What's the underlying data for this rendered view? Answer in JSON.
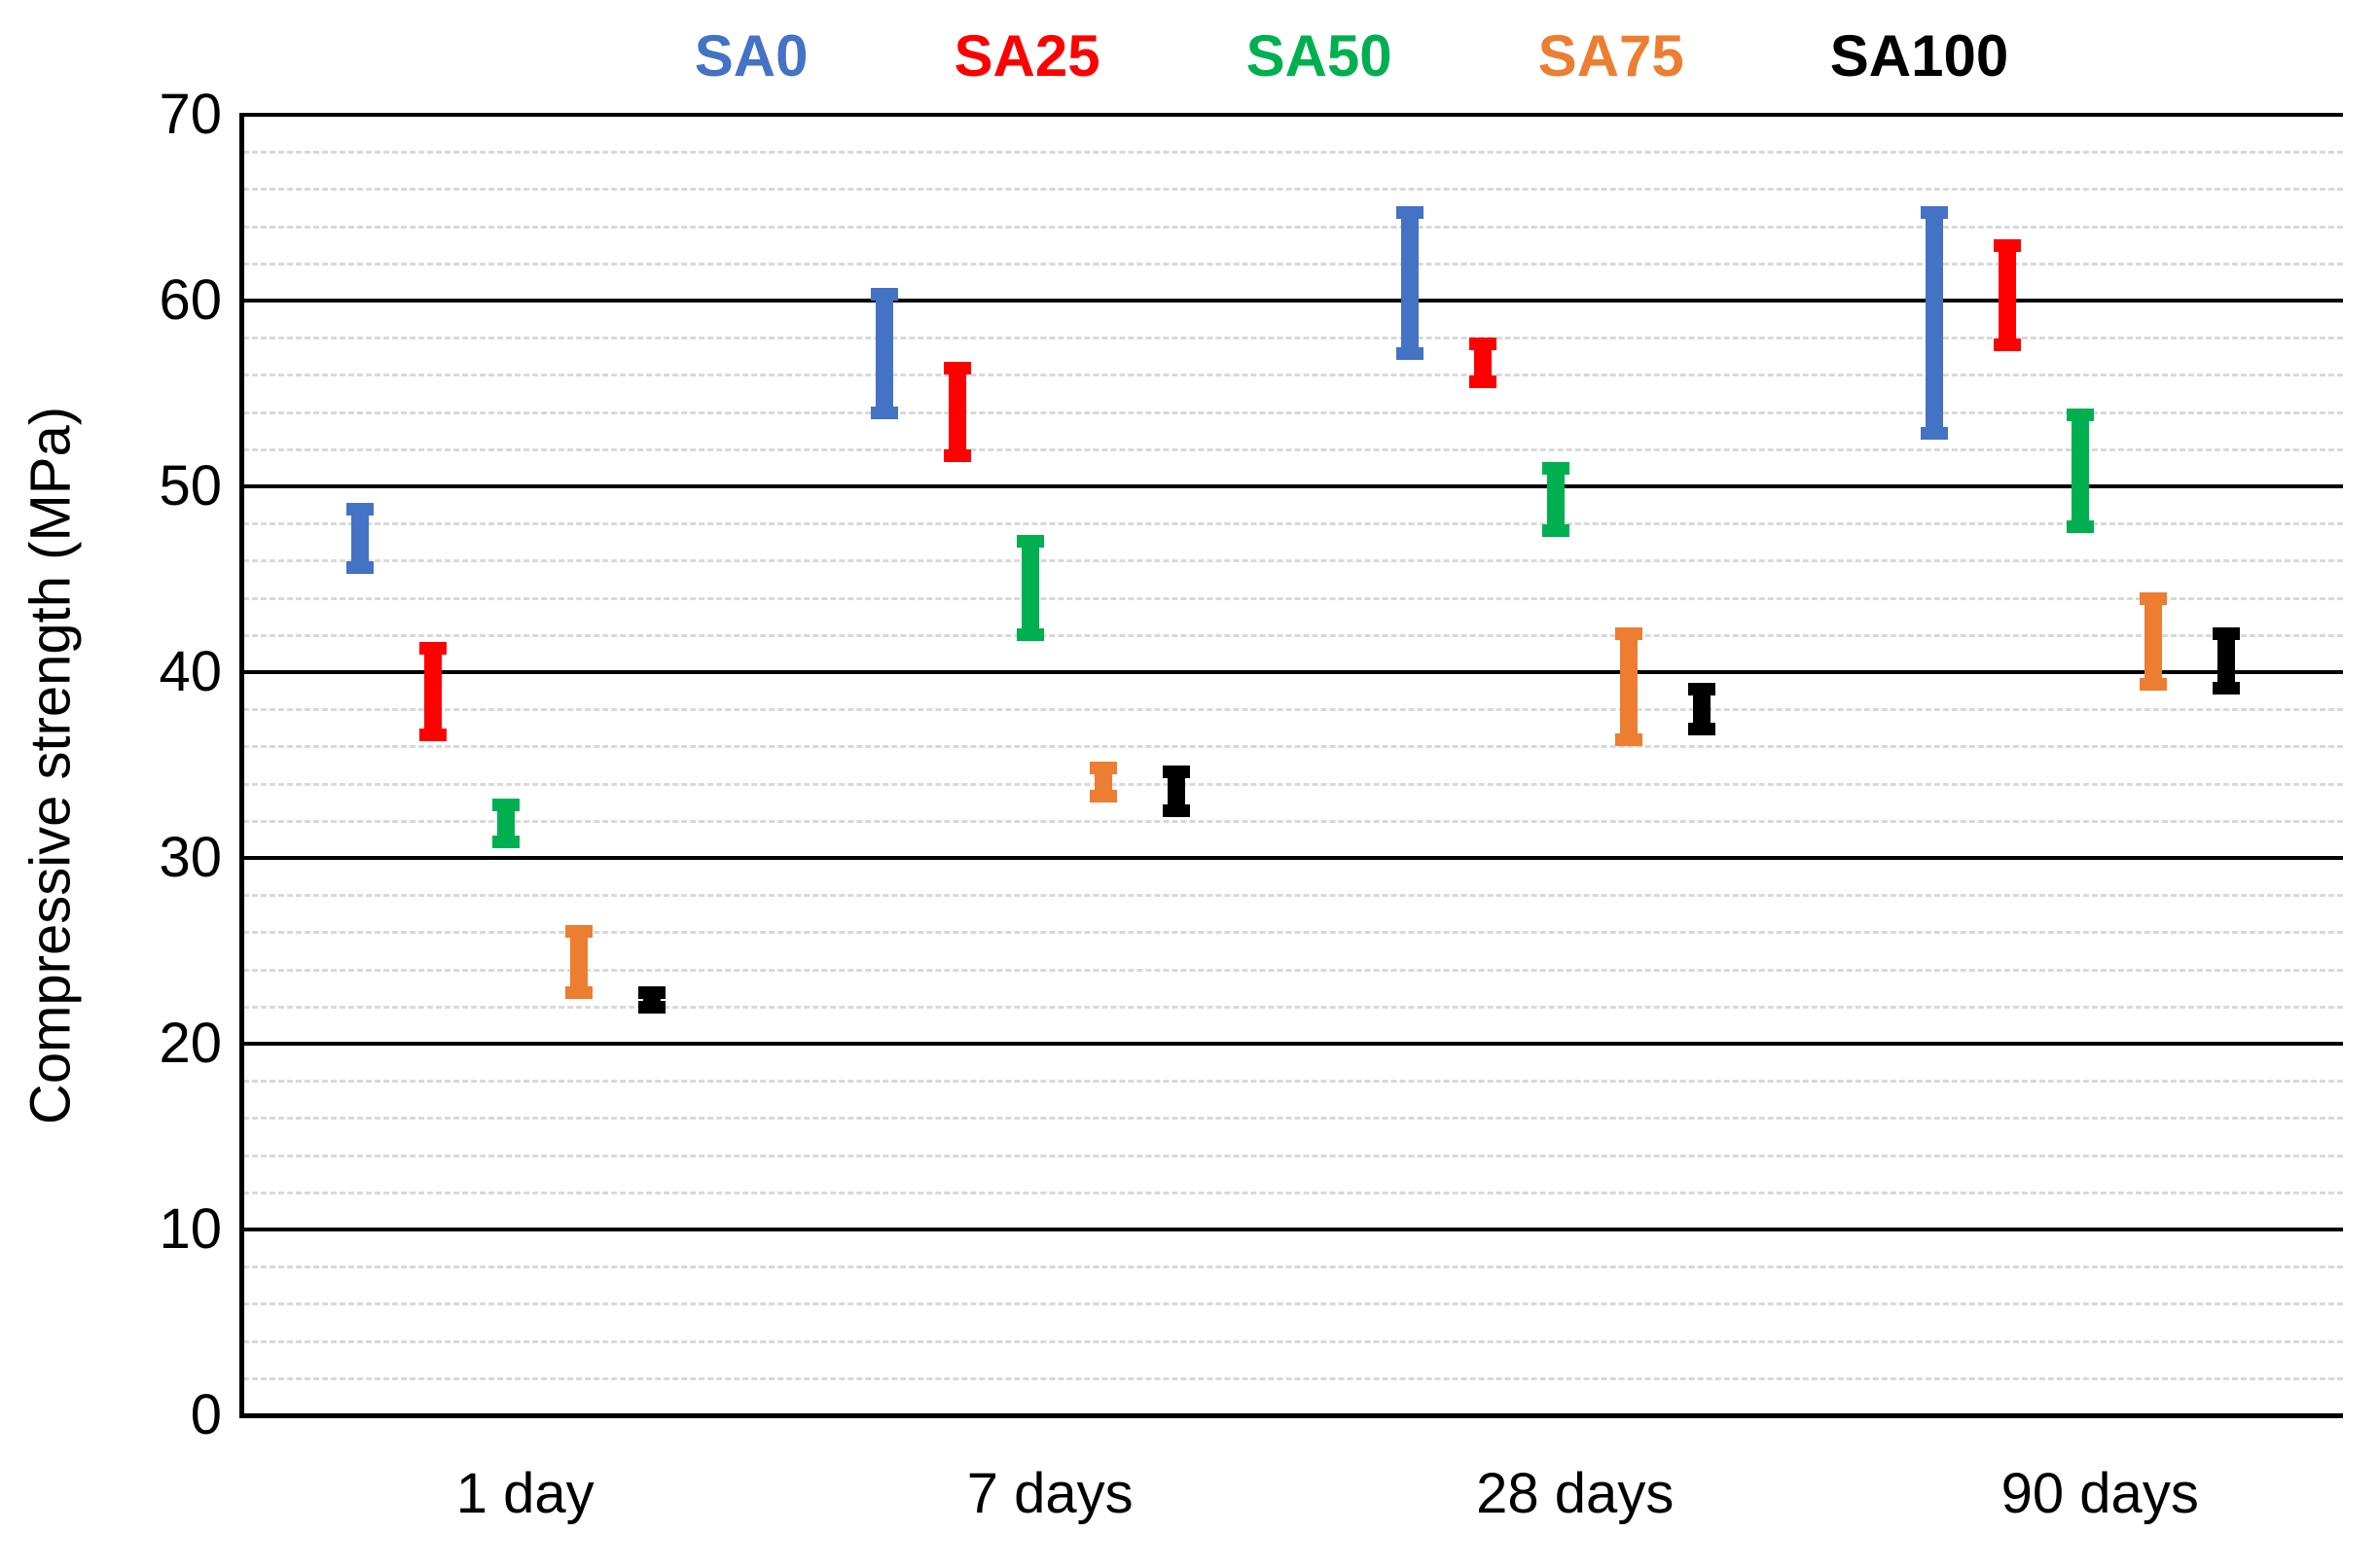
{
  "page": {
    "background": "#FFFFFF"
  },
  "chart_data": {
    "type": "bar",
    "subtype": "floating-range-bars",
    "title": "",
    "ylabel": "Compressive strength (MPa)",
    "xlabel": "",
    "ylim": [
      0,
      70
    ],
    "ytick_step": 10,
    "minor_gridline_step": 2,
    "yticks": [
      0,
      10,
      20,
      30,
      40,
      50,
      60,
      70
    ],
    "categories": [
      "1 day",
      "7 days",
      "28 days",
      "90 days"
    ],
    "series": [
      {
        "name": "SA0",
        "color": "#4472C4",
        "ranges_mpa": [
          [
            45.3,
            49.1
          ],
          [
            53.6,
            60.7
          ],
          [
            56.8,
            65.1
          ],
          [
            52.5,
            65.1
          ]
        ]
      },
      {
        "name": "SA25",
        "color": "#FF0000",
        "ranges_mpa": [
          [
            36.3,
            41.6
          ],
          [
            51.3,
            56.7
          ],
          [
            55.3,
            58.0
          ],
          [
            57.3,
            63.3
          ]
        ]
      },
      {
        "name": "SA50",
        "color": "#00B050",
        "ranges_mpa": [
          [
            30.5,
            33.2
          ],
          [
            41.7,
            47.4
          ],
          [
            47.3,
            51.3
          ],
          [
            47.5,
            54.2
          ]
        ]
      },
      {
        "name": "SA75",
        "color": "#ED7D31",
        "ranges_mpa": [
          [
            22.4,
            26.4
          ],
          [
            33.0,
            35.2
          ],
          [
            36.0,
            42.4
          ],
          [
            39.0,
            44.3
          ]
        ]
      },
      {
        "name": "SA100",
        "color": "#000000",
        "ranges_mpa": [
          [
            21.6,
            23.1
          ],
          [
            32.2,
            35.0
          ],
          [
            36.6,
            39.4
          ],
          [
            38.8,
            42.4
          ]
        ]
      }
    ],
    "legend_position": "top",
    "grid": {
      "major_color": "#000000",
      "minor_color": "#D9D9D9",
      "minor_style": "dashed",
      "background": "#FFFFFF"
    }
  }
}
